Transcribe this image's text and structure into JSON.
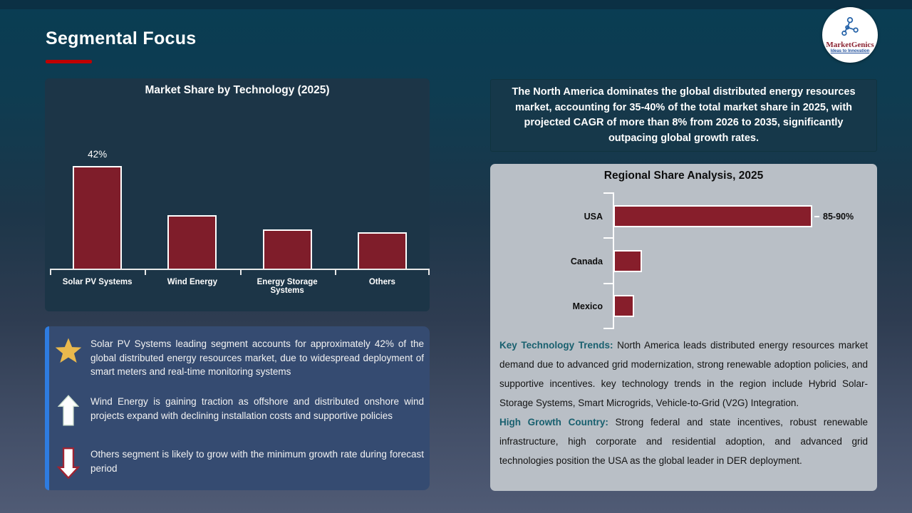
{
  "slide": {
    "title": "Segmental Focus"
  },
  "logo": {
    "name": "MarketGenics",
    "tagline": "Ideas to Innovation"
  },
  "na_summary": {
    "text": "The North America dominates the global distributed energy resources market, accounting for 35-40% of the total market share in 2025, with projected CAGR of more than 8% from 2026 to 2035, significantly outpacing global growth rates."
  },
  "insights": [
    {
      "icon": "star-icon",
      "text": "Solar PV Systems leading segment accounts for approximately 42% of the global distributed energy resources market, due to widespread deployment of smart meters and real-time monitoring systems"
    },
    {
      "icon": "arrow-up-icon",
      "text": "Wind Energy is gaining traction as offshore and distributed onshore wind projects expand with declining installation costs and supportive policies"
    },
    {
      "icon": "arrow-down-icon",
      "text": "Others segment is likely to grow with the minimum growth rate during forecast period"
    }
  ],
  "regional_text": {
    "paragraphs": [
      {
        "lead": "Key Technology Trends:",
        "body": " North America leads distributed energy resources market demand due to advanced grid modernization, strong renewable adoption policies, and supportive incentives. key technology trends in the region include Hybrid Solar-Storage Systems, Smart Microgrids, Vehicle-to-Grid (V2G) Integration."
      },
      {
        "lead": "High Growth Country:",
        "body": " Strong federal and state incentives, robust renewable infrastructure, high corporate and residential adoption, and advanced grid technologies position the USA as the global leader in DER deployment."
      }
    ]
  },
  "colors": {
    "accent_red": "#c00000",
    "teal_heading": "#19606f",
    "panel_navy": "#1c3547",
    "panel_gray": "#b9bfc6",
    "note_blue": "#354b71",
    "note_accent_blue": "#2e7ce0",
    "star_gold": "#eab94d",
    "bar_maroon_left": "#7f1d2a",
    "bar_maroon_right": "#871e2b"
  },
  "chart_data": [
    {
      "type": "bar",
      "title": "Market Share by Technology (2025)",
      "categories": [
        "Solar PV Systems",
        "Wind Energy",
        "Energy Storage Systems",
        "Others"
      ],
      "values": [
        42,
        22,
        16,
        15
      ],
      "data_labels": [
        "42%",
        "",
        "",
        ""
      ],
      "ylim": [
        0,
        50
      ],
      "grid": false,
      "legend": false,
      "bar_color": "#7f1d2a",
      "bar_border_color": "#ffffff",
      "xlabel": "",
      "ylabel": ""
    },
    {
      "type": "bar",
      "orientation": "horizontal",
      "title": "Regional Share Analysis, 2025",
      "categories": [
        "USA",
        "Canada",
        "Mexico"
      ],
      "values": [
        87.5,
        12.5,
        9
      ],
      "data_labels": [
        "85-90%",
        "",
        ""
      ],
      "xlim": [
        0,
        100
      ],
      "grid": false,
      "legend": false,
      "bar_color": "#871e2b",
      "bar_border_color": "#ffffff",
      "xlabel": "",
      "ylabel": ""
    }
  ]
}
